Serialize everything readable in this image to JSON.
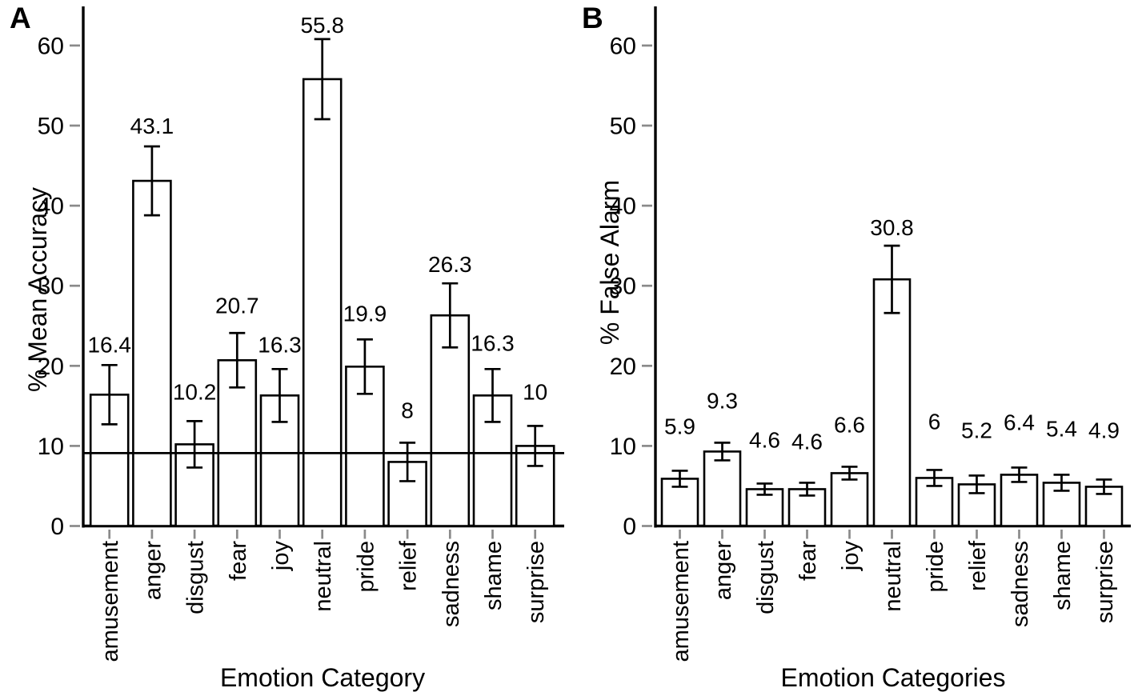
{
  "figure": {
    "background": "#ffffff",
    "text_color": "#000000",
    "tick_color": "#8a8a8a",
    "bar_fill": "#ffffff",
    "bar_stroke": "#000000"
  },
  "chart_data": [
    {
      "type": "bar",
      "panel_label": "A",
      "ylabel": "% Mean Accuracy",
      "xlabel": "Emotion Category",
      "ylim": [
        0,
        65
      ],
      "yticks": [
        0,
        10,
        20,
        30,
        40,
        50,
        60
      ],
      "grid": false,
      "legend": false,
      "categories": [
        "amusement",
        "anger",
        "disgust",
        "fear",
        "joy",
        "neutral",
        "pride",
        "relief",
        "sadness",
        "shame",
        "surprise"
      ],
      "values": [
        16.4,
        43.1,
        10.2,
        20.7,
        16.3,
        55.8,
        19.9,
        8,
        26.3,
        16.3,
        10
      ],
      "value_labels": [
        "16.4",
        "43.1",
        "10.2",
        "20.7",
        "16.3",
        "55.8",
        "19.9",
        "8",
        "26.3",
        "16.3",
        "10"
      ],
      "errors": [
        3.7,
        4.3,
        2.9,
        3.4,
        3.3,
        5.0,
        3.4,
        2.4,
        4.0,
        3.3,
        2.5
      ],
      "reference_line": 9.1,
      "label_gaps": [
        16,
        16,
        27,
        25,
        21,
        8,
        23,
        31,
        14,
        23,
        33
      ]
    },
    {
      "type": "bar",
      "panel_label": "B",
      "ylabel": "% False Alarm",
      "xlabel": "Emotion Categories",
      "ylim": [
        0,
        65
      ],
      "yticks": [
        0,
        10,
        20,
        30,
        40,
        50,
        60
      ],
      "grid": false,
      "legend": false,
      "categories": [
        "amusement",
        "anger",
        "disgust",
        "fear",
        "joy",
        "neutral",
        "pride",
        "relief",
        "sadness",
        "shame",
        "surprise"
      ],
      "values": [
        5.9,
        9.3,
        4.6,
        4.6,
        6.6,
        30.8,
        6,
        5.2,
        6.4,
        5.4,
        4.9
      ],
      "value_labels": [
        "5.9",
        "9.3",
        "4.6",
        "4.6",
        "6.6",
        "30.8",
        "6",
        "5.2",
        "6.4",
        "5.4",
        "4.9"
      ],
      "errors": [
        1.0,
        1.1,
        0.7,
        0.8,
        0.8,
        4.2,
        1.0,
        1.1,
        0.9,
        1.0,
        0.9
      ],
      "reference_line": null,
      "label_gaps": [
        46,
        43,
        45,
        42,
        43,
        13,
        51,
        47,
        47,
        48,
        52
      ]
    }
  ]
}
